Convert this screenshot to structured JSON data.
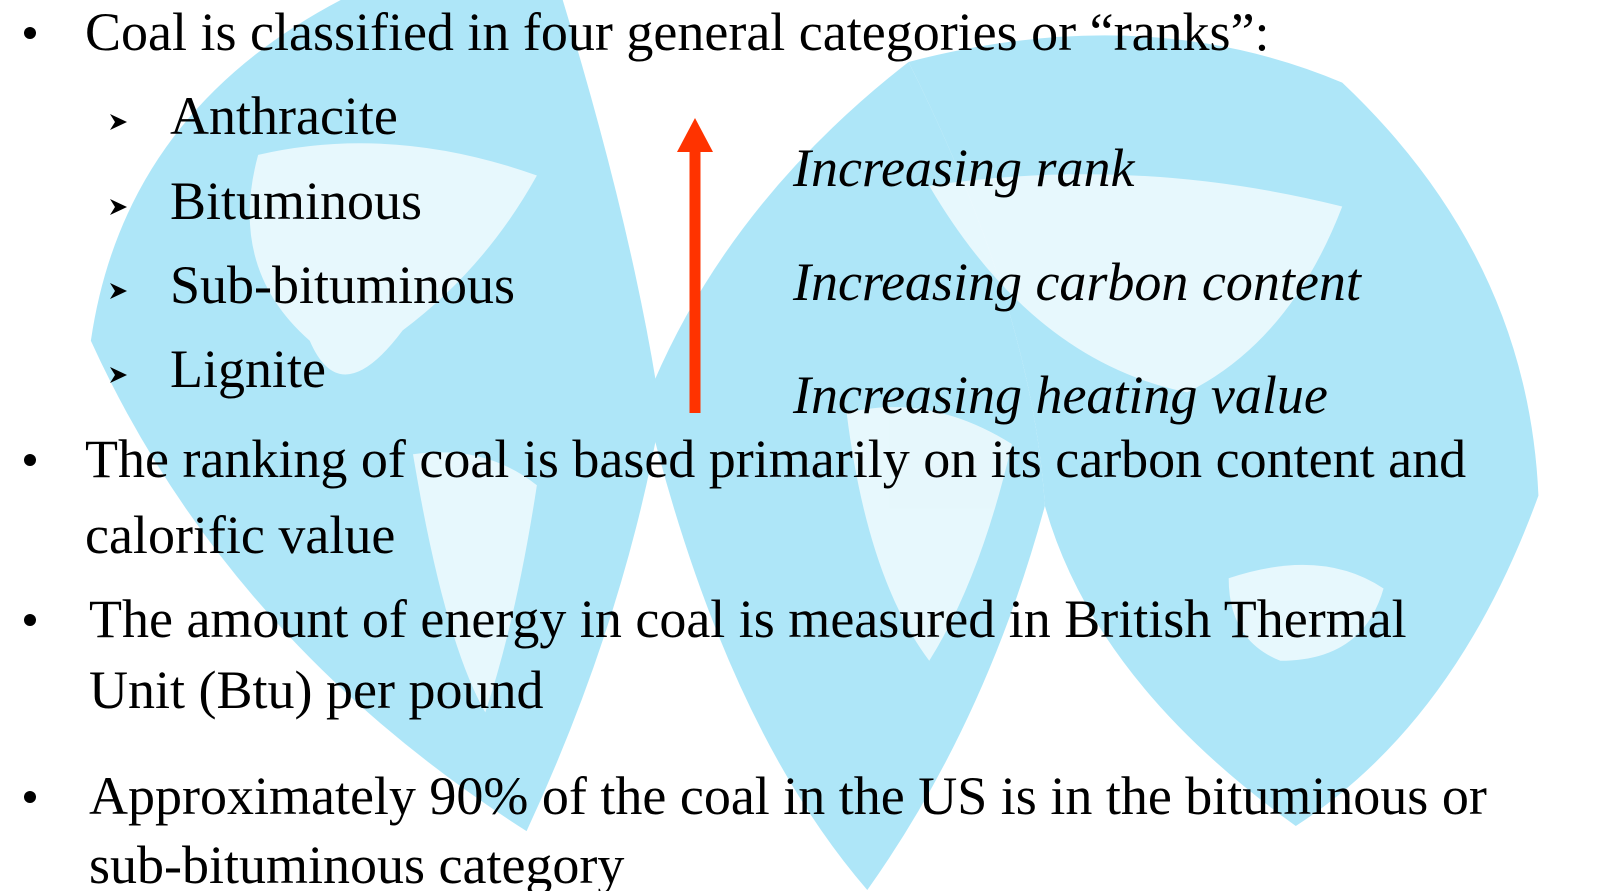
{
  "bullets": [
    {
      "lines": [
        "Coal is classified in four general categories or “ranks”:"
      ],
      "sub": [
        "Anthracite",
        "Bituminous",
        "Sub-bituminous",
        "Lignite"
      ]
    },
    {
      "lines": [
        "The ranking of coal is based primarily on its carbon content and",
        "calorific value"
      ]
    },
    {
      "lines": [
        "The amount of energy in coal is measured in British Thermal",
        "Unit (Btu) per pound"
      ]
    },
    {
      "lines": [
        "Approximately 90% of the coal in the US is in the bituminous or",
        "sub-bituminous category"
      ]
    }
  ],
  "arrow_labels": [
    "Increasing rank",
    "Increasing carbon content",
    "Increasing heating value"
  ]
}
